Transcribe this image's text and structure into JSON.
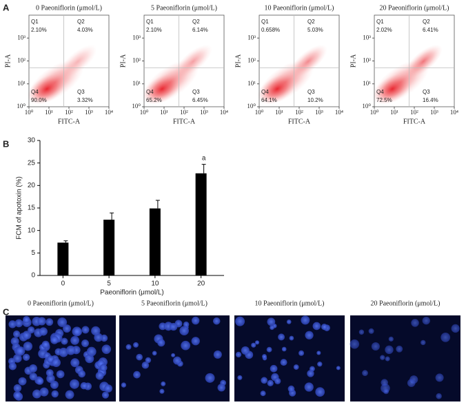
{
  "panel_labels": [
    "A",
    "B",
    "C"
  ],
  "chart_data": [
    {
      "type": "scatter",
      "title": "0 Paeoniflorin (μmol/L)",
      "xlabel": "FITC-A",
      "ylabel": "PI-A",
      "log": true,
      "xlim": [
        1,
        10000
      ],
      "ylim": [
        1,
        10000
      ],
      "xticks": [
        {
          "value": 1,
          "label": "10⁰"
        },
        {
          "value": 10,
          "label": "10¹"
        },
        {
          "value": 100,
          "label": "10²"
        },
        {
          "value": 1000,
          "label": "10³"
        },
        {
          "value": 10000,
          "label": "10⁴"
        }
      ],
      "yticks": [
        {
          "value": 1,
          "label": "10⁰"
        },
        {
          "value": 10,
          "label": "10¹"
        },
        {
          "value": 100,
          "label": "10²"
        },
        {
          "value": 1000,
          "label": "10³"
        }
      ],
      "quadrant_lines": {
        "x": 55,
        "y": 50
      },
      "quadrants": [
        {
          "name": "Q1",
          "value": 2.1,
          "value_label": "2.10%"
        },
        {
          "name": "Q2",
          "value": 4.03,
          "value_label": "4.03%"
        },
        {
          "name": "Q3",
          "value": 3.32,
          "value_label": "3.32%"
        },
        {
          "name": "Q4",
          "value": 90.0,
          "value_label": "90.0%"
        }
      ]
    },
    {
      "type": "scatter",
      "title": "5 Paeoniflorin (μmol/L)",
      "xlabel": "FITC-A",
      "ylabel": "PI-A",
      "log": true,
      "xlim": [
        1,
        10000
      ],
      "ylim": [
        1,
        10000
      ],
      "xticks": [
        {
          "value": 1,
          "label": "10⁰"
        },
        {
          "value": 10,
          "label": "10¹"
        },
        {
          "value": 100,
          "label": "10²"
        },
        {
          "value": 1000,
          "label": "10³"
        },
        {
          "value": 10000,
          "label": "10⁴"
        }
      ],
      "yticks": [
        {
          "value": 1,
          "label": "10⁰"
        },
        {
          "value": 10,
          "label": "10¹"
        },
        {
          "value": 100,
          "label": "10²"
        },
        {
          "value": 1000,
          "label": "10³"
        }
      ],
      "quadrant_lines": {
        "x": 55,
        "y": 50
      },
      "quadrants": [
        {
          "name": "Q1",
          "value": 2.1,
          "value_label": "2.10%"
        },
        {
          "name": "Q2",
          "value": 6.14,
          "value_label": "6.14%"
        },
        {
          "name": "Q3",
          "value": 6.45,
          "value_label": "6.45%"
        },
        {
          "name": "Q4",
          "value": 65.2,
          "value_label": "65.2%"
        }
      ]
    },
    {
      "type": "scatter",
      "title": "10 Paeoniflorin (μmol/L)",
      "xlabel": "FITC-A",
      "ylabel": "PI-A",
      "log": true,
      "xlim": [
        1,
        10000
      ],
      "ylim": [
        1,
        10000
      ],
      "xticks": [
        {
          "value": 1,
          "label": "10⁰"
        },
        {
          "value": 10,
          "label": "10¹"
        },
        {
          "value": 100,
          "label": "10²"
        },
        {
          "value": 1000,
          "label": "10³"
        },
        {
          "value": 10000,
          "label": "10⁴"
        }
      ],
      "yticks": [
        {
          "value": 1,
          "label": "10⁰"
        },
        {
          "value": 10,
          "label": "10¹"
        },
        {
          "value": 100,
          "label": "10²"
        },
        {
          "value": 1000,
          "label": "10³"
        }
      ],
      "quadrant_lines": {
        "x": 55,
        "y": 50
      },
      "quadrants": [
        {
          "name": "Q1",
          "value": 0.658,
          "value_label": "0.658%"
        },
        {
          "name": "Q2",
          "value": 5.03,
          "value_label": "5.03%"
        },
        {
          "name": "Q3",
          "value": 10.2,
          "value_label": "10.2%"
        },
        {
          "name": "Q4",
          "value": 64.1,
          "value_label": "64.1%"
        }
      ]
    },
    {
      "type": "scatter",
      "title": "20 Paeoniflorin (μmol/L)",
      "xlabel": "FITC-A",
      "ylabel": "PI-A",
      "log": true,
      "xlim": [
        1,
        10000
      ],
      "ylim": [
        1,
        10000
      ],
      "xticks": [
        {
          "value": 1,
          "label": "10⁰"
        },
        {
          "value": 10,
          "label": "10¹"
        },
        {
          "value": 100,
          "label": "10²"
        },
        {
          "value": 1000,
          "label": "10³"
        },
        {
          "value": 10000,
          "label": "10⁴"
        }
      ],
      "yticks": [
        {
          "value": 1,
          "label": "10⁰"
        },
        {
          "value": 10,
          "label": "10¹"
        },
        {
          "value": 100,
          "label": "10²"
        },
        {
          "value": 1000,
          "label": "10³"
        }
      ],
      "quadrant_lines": {
        "x": 55,
        "y": 50
      },
      "quadrants": [
        {
          "name": "Q1",
          "value": 2.02,
          "value_label": "2.02%"
        },
        {
          "name": "Q2",
          "value": 6.41,
          "value_label": "6.41%"
        },
        {
          "name": "Q3",
          "value": 16.4,
          "value_label": "16.4%"
        },
        {
          "name": "Q4",
          "value": 72.5,
          "value_label": "72.5%"
        }
      ]
    },
    {
      "type": "bar",
      "xlabel": "Paeoniflorin (μmol/L)",
      "ylabel": "FCM of apotoxin (%)",
      "categories": [
        "0",
        "5",
        "10",
        "20"
      ],
      "values": [
        7.3,
        12.4,
        14.9,
        22.7
      ],
      "errors": [
        0.4,
        1.5,
        1.8,
        2.0
      ],
      "color": "#000000",
      "ylim": [
        0,
        30
      ],
      "yticks": [
        0,
        5,
        10,
        15,
        20,
        25,
        30
      ],
      "annotations": [
        {
          "category": 3,
          "text": "a"
        }
      ]
    }
  ],
  "images": [
    {
      "title": "0 Paeoniflorin (μmol/L)"
    },
    {
      "title": "5 Paeoniflorin (μmol/L)"
    },
    {
      "title": "10 Paeoniflorin (μmol/L)"
    },
    {
      "title": "20 Paeoniflorin (μmol/L)"
    }
  ]
}
